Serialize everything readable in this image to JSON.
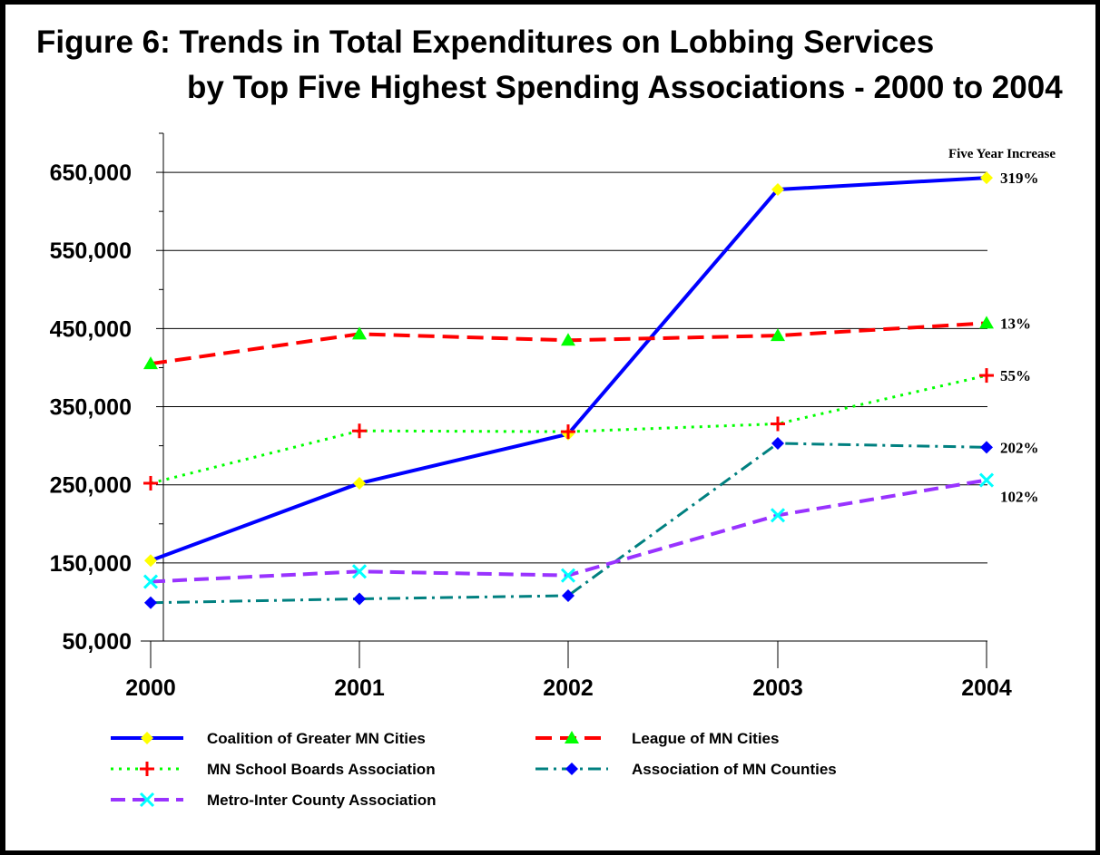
{
  "chart_data": {
    "type": "line",
    "title": "Figure 6:  Trends in Total Expenditures on Lobbing Services",
    "subtitle": "by Top Five Highest Spending Associations - 2000 to 2004",
    "xlabel": "",
    "ylabel": "",
    "x": [
      "2000",
      "2001",
      "2002",
      "2003",
      "2004"
    ],
    "y_ticks": [
      "650,000",
      "550,000",
      "450,000",
      "350,000",
      "250,000",
      "150,000",
      "50,000"
    ],
    "ylim": [
      50000,
      700000
    ],
    "grid": true,
    "legend_position": "bottom",
    "annotation_header": "Five Year Increase",
    "series": [
      {
        "name": "Coalition of Greater MN Cities",
        "values": [
          153000,
          252000,
          315000,
          628000,
          643000
        ],
        "color": "#0000ff",
        "dash": "solid",
        "marker": "diamond",
        "marker_color": "#ffff00",
        "end_label": "319%"
      },
      {
        "name": "League of MN Cities",
        "values": [
          405000,
          443000,
          435000,
          441000,
          457000
        ],
        "color": "#ff0000",
        "dash": "dash",
        "marker": "triangle",
        "marker_color": "#00ff00",
        "end_label": "13%"
      },
      {
        "name": "MN School Boards Association",
        "values": [
          252000,
          319000,
          318000,
          328000,
          390000
        ],
        "color": "#00ff00",
        "dash": "dot",
        "marker": "plus",
        "marker_color": "#ff0000",
        "end_label": "55%"
      },
      {
        "name": "Association of MN Counties",
        "values": [
          99000,
          104000,
          108000,
          303000,
          298000
        ],
        "color": "#008080",
        "dash": "dashdot",
        "marker": "diamond",
        "marker_color": "#0000ff",
        "end_label": "202%"
      },
      {
        "name": "Metro-Inter County Association",
        "values": [
          126000,
          139000,
          134000,
          211000,
          256000
        ],
        "color": "#9933ff",
        "dash": "longdash",
        "marker": "x",
        "marker_color": "#00ffff",
        "end_label": "102%"
      }
    ]
  }
}
